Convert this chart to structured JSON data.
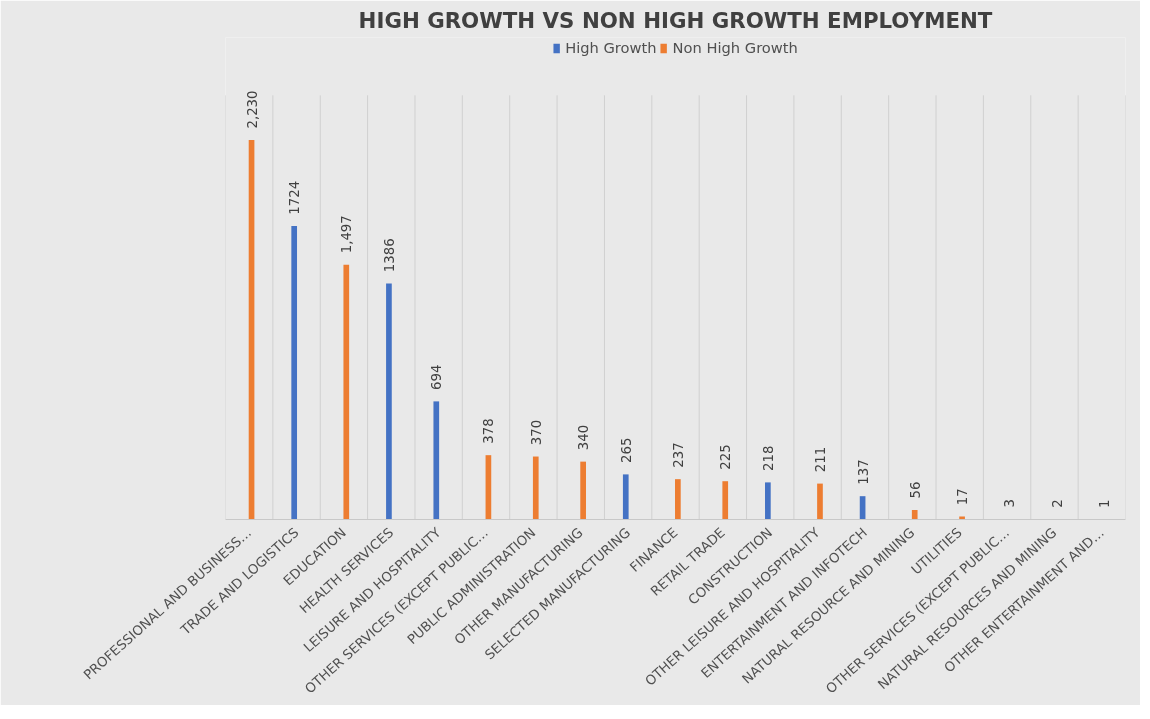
{
  "chart_data": {
    "type": "bar",
    "title": "HIGH GROWTH VS NON HIGH GROWTH EMPLOYMENT",
    "categories": [
      "PROFESSIONAL AND BUSINESS…",
      "TRADE AND LOGISTICS",
      "EDUCATION",
      "HEALTH SERVICES",
      "LEISURE AND HOSPITALITY",
      "OTHER SERVICES (EXCEPT PUBLIC…",
      "PUBLIC ADMINISTRATION",
      "OTHER MANUFACTURING",
      "SELECTED MANUFACTURING",
      "FINANCE",
      "RETAIL TRADE",
      "CONSTRUCTION",
      "OTHER LEISURE AND HOSPITALITY",
      "ENTERTAINMENT AND INFOTECH",
      "NATURAL RESOURCE AND MINING",
      "UTILITIES",
      "OTHER SERVICES (EXCEPT PUBLIC…",
      "NATURAL RESOURCES AND MINING",
      "OTHER ENTERTAINMENT AND…"
    ],
    "series": [
      {
        "name": "High Growth",
        "color": "#4472c4",
        "values": [
          null,
          1724,
          null,
          1386,
          694,
          null,
          null,
          null,
          265,
          null,
          null,
          218,
          null,
          137,
          null,
          null,
          null,
          null,
          null
        ],
        "value_labels": [
          null,
          "1724",
          null,
          "1386",
          "694",
          null,
          null,
          null,
          "265",
          null,
          null,
          "218",
          null,
          "137",
          null,
          null,
          null,
          null,
          null
        ]
      },
      {
        "name": "Non High Growth",
        "color": "#ed7d31",
        "values": [
          2230,
          null,
          1497,
          null,
          null,
          378,
          370,
          340,
          null,
          237,
          225,
          null,
          211,
          null,
          56,
          17,
          3,
          2,
          1
        ],
        "value_labels": [
          "2,230",
          null,
          "1,497",
          null,
          null,
          "378",
          "370",
          "340",
          null,
          "237",
          "225",
          null,
          "211",
          null,
          "56",
          "17",
          "3",
          "2",
          "1"
        ]
      }
    ],
    "tick_labels": "x",
    "grid": "x",
    "legend": "top"
  }
}
